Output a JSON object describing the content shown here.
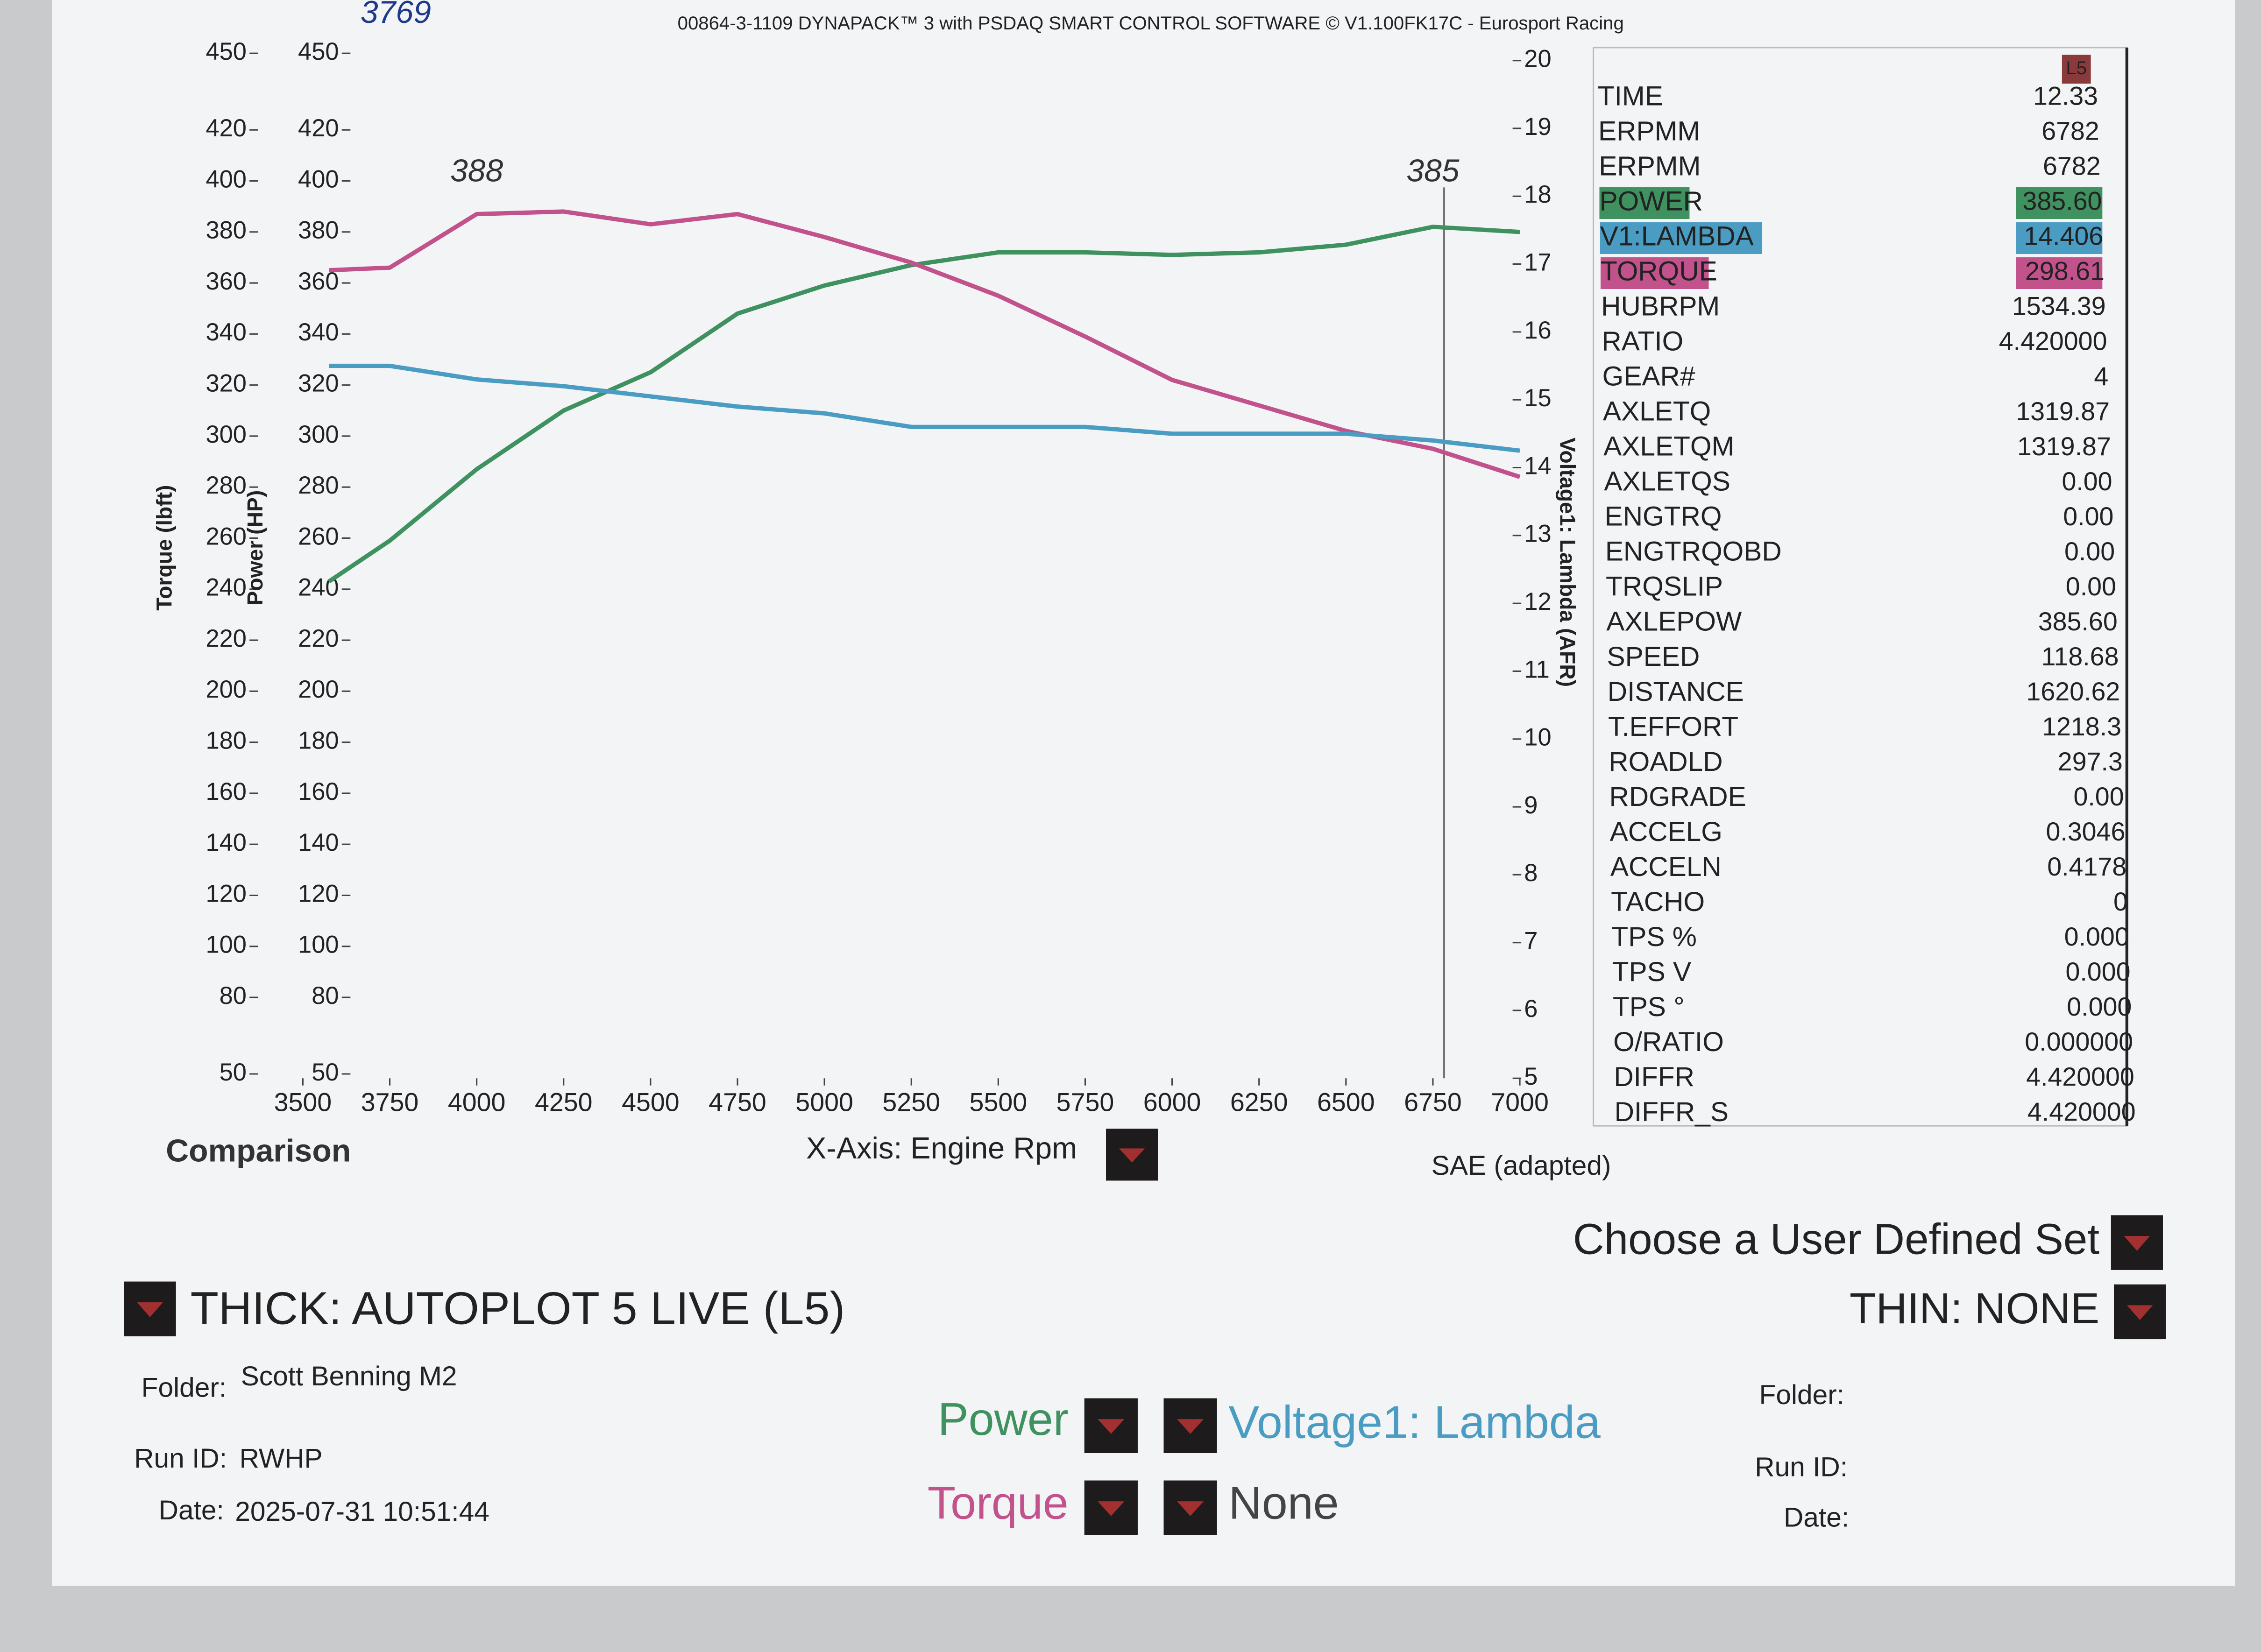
{
  "chart_data": {
    "type": "line",
    "title": "00864-3-1109 DYNAPACK™ 3 with PSDAQ SMART CONTROL SOFTWARE © V1.100FK17C - Eurosport Racing",
    "y_label": "Torque (lbft)",
    "y_label_2": "Power (HP)",
    "y2_label": "Voltage1: Lambda (AFR)",
    "x_label": "X-Axis: Engine Rpm",
    "x": [
      3575,
      3750,
      4000,
      4250,
      4500,
      4750,
      5000,
      5250,
      5500,
      5750,
      6000,
      6250,
      6500,
      6750,
      7000
    ],
    "series": [
      {
        "name": "Power",
        "color": "#3f9160",
        "values": [
          243,
          259,
          287,
          310,
          325,
          348,
          359,
          367,
          372,
          372,
          371,
          372,
          375,
          382,
          380
        ]
      },
      {
        "name": "Torque",
        "color": "#c2528c",
        "values": [
          365,
          366,
          387,
          388,
          383,
          387,
          378,
          368,
          355,
          339,
          322,
          312,
          302,
          295,
          284
        ]
      },
      {
        "name": "Voltage1: Lambda",
        "color": "#4a9cc2",
        "axis": "y2",
        "values": [
          15.5,
          15.5,
          15.3,
          15.2,
          15.05,
          14.9,
          14.8,
          14.6,
          14.6,
          14.6,
          14.5,
          14.5,
          14.5,
          14.4,
          14.25
        ]
      }
    ],
    "xlim": [
      3500,
      7000
    ],
    "xticks": [
      3500,
      3750,
      4000,
      4250,
      4500,
      4750,
      5000,
      5250,
      5500,
      5750,
      6000,
      6250,
      6500,
      6750,
      7000
    ],
    "ylim": [
      50,
      450
    ],
    "yticks": [
      450,
      420,
      400,
      380,
      360,
      340,
      320,
      300,
      280,
      260,
      240,
      220,
      200,
      180,
      160,
      140,
      120,
      100,
      80,
      50
    ],
    "y2lim": [
      5,
      20
    ],
    "y2ticks": [
      20,
      19,
      18,
      17,
      16,
      15,
      14,
      13,
      12,
      11,
      10,
      9,
      8,
      7,
      6,
      5
    ],
    "grid": false,
    "cursor_x": 6782,
    "annotations": [
      {
        "text": "3769"
      },
      {
        "text": "388",
        "x": 4000
      },
      {
        "text": "385",
        "x": 6750
      }
    ]
  },
  "panel": {
    "header": "L5",
    "rows": [
      {
        "name": "TIME",
        "value": "12.33"
      },
      {
        "name": "ERPMM",
        "value": "6782"
      },
      {
        "name": "ERPMM",
        "value": "6782"
      },
      {
        "name": "POWER",
        "value": "385.60",
        "color": "#3f9160"
      },
      {
        "name": "V1:LAMBDA",
        "value": "14.406",
        "color": "#4a9cc2"
      },
      {
        "name": "TORQUE",
        "value": "298.61",
        "color": "#c2528c"
      },
      {
        "name": "HUBRPM",
        "value": "1534.39"
      },
      {
        "name": "RATIO",
        "value": "4.420000"
      },
      {
        "name": "GEAR#",
        "value": "4"
      },
      {
        "name": "AXLETQ",
        "value": "1319.87"
      },
      {
        "name": "AXLETQM",
        "value": "1319.87"
      },
      {
        "name": "AXLETQS",
        "value": "0.00"
      },
      {
        "name": "ENGTRQ",
        "value": "0.00"
      },
      {
        "name": "ENGTRQOBD",
        "value": "0.00"
      },
      {
        "name": "TRQSLIP",
        "value": "0.00"
      },
      {
        "name": "AXLEPOW",
        "value": "385.60"
      },
      {
        "name": "SPEED",
        "value": "118.68"
      },
      {
        "name": "DISTANCE",
        "value": "1620.62"
      },
      {
        "name": "T.EFFORT",
        "value": "1218.3"
      },
      {
        "name": "ROADLD",
        "value": "297.3"
      },
      {
        "name": "RDGRADE",
        "value": "0.00"
      },
      {
        "name": "ACCELG",
        "value": "0.3046"
      },
      {
        "name": "ACCELN",
        "value": "0.4178"
      },
      {
        "name": "TACHO",
        "value": "0"
      },
      {
        "name": "TPS %",
        "value": "0.000"
      },
      {
        "name": "TPS V",
        "value": "0.000"
      },
      {
        "name": "TPS °",
        "value": "0.000"
      },
      {
        "name": "O/RATIO",
        "value": "0.000000"
      },
      {
        "name": "DIFFR",
        "value": "4.420000"
      },
      {
        "name": "DIFFR_S",
        "value": "4.420000"
      }
    ]
  },
  "controls": {
    "comparison": "Comparison",
    "correction": "SAE (adapted)",
    "user_set": "Choose a User Defined Set",
    "thick": "THICK: AUTOPLOT 5 LIVE (L5)",
    "thin": "THIN: NONE",
    "left": {
      "folder_label": "Folder:",
      "folder": "Scott Benning M2",
      "run_label": "Run ID:",
      "run": "RWHP",
      "date_label": "Date:",
      "date": "2025-07-31 10:51:44"
    },
    "right": {
      "folder_label": "Folder:",
      "run_label": "Run ID:",
      "date_label": "Date:"
    },
    "channels": [
      "Power",
      "Voltage1: Lambda",
      "Torque",
      "None"
    ]
  }
}
